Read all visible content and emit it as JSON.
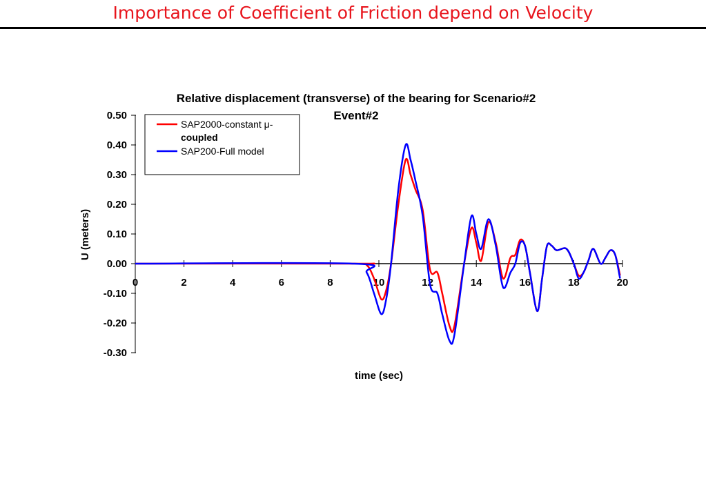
{
  "slide_title": "Importance of Coefficient of Friction depend on Velocity",
  "chart_data": {
    "type": "line",
    "title_line1": "Relative displacement (transverse) of the bearing for Scenario#2",
    "title_line2": "Event#2",
    "xlabel": "time (sec)",
    "ylabel": "U (meters)",
    "xlim": [
      0,
      20
    ],
    "ylim": [
      -0.3,
      0.5
    ],
    "x_ticks": [
      "0",
      "2",
      "4",
      "6",
      "8",
      "10",
      "12",
      "14",
      "16",
      "18",
      "20"
    ],
    "y_ticks": [
      "0.50",
      "0.40",
      "0.30",
      "0.20",
      "0.10",
      "0.00",
      "-0.10",
      "-0.20",
      "-0.30"
    ],
    "grid": false,
    "legend": {
      "position": "top-left",
      "entries": [
        {
          "label_line1": "SAP2000-constant μ-",
          "label_line2": "coupled"
        },
        {
          "label_line1": "SAP200-Full model"
        }
      ]
    },
    "series": [
      {
        "name": "SAP2000-constant μ-coupled",
        "color": "#ff0000",
        "x": [
          0,
          9.0,
          9.5,
          9.8,
          10.1,
          10.3,
          10.5,
          10.8,
          11.1,
          11.3,
          11.5,
          11.8,
          12.1,
          12.4,
          12.6,
          12.9,
          13.1,
          13.5,
          13.8,
          14.0,
          14.2,
          14.5,
          14.8,
          15.1,
          15.4,
          15.6,
          15.8,
          16.0,
          16.2,
          16.5,
          16.7,
          16.9,
          17.1,
          17.3,
          17.7,
          18.0,
          18.2,
          18.4,
          18.6,
          18.8,
          19.1,
          19.3,
          19.5,
          19.7,
          19.9
        ],
        "y": [
          0,
          0,
          -0.005,
          -0.05,
          -0.12,
          -0.09,
          0.0,
          0.2,
          0.35,
          0.3,
          0.25,
          0.18,
          -0.02,
          -0.03,
          -0.1,
          -0.21,
          -0.21,
          0.0,
          0.12,
          0.07,
          0.01,
          0.14,
          0.07,
          -0.05,
          0.02,
          0.03,
          0.08,
          0.06,
          -0.03,
          -0.16,
          -0.05,
          0.06,
          0.06,
          0.045,
          0.05,
          0.0,
          -0.04,
          -0.03,
          0.01,
          0.05,
          0.0,
          0.02,
          0.045,
          0.03,
          -0.04
        ]
      },
      {
        "name": "SAP200-Full model",
        "color": "#0000ff",
        "x": [
          0,
          9.0,
          9.5,
          9.8,
          10.1,
          10.3,
          10.5,
          10.8,
          11.1,
          11.3,
          11.5,
          11.8,
          12.1,
          12.4,
          12.6,
          12.9,
          13.1,
          13.5,
          13.8,
          14.0,
          14.2,
          14.5,
          14.8,
          15.1,
          15.4,
          15.6,
          15.8,
          16.0,
          16.2,
          16.5,
          16.7,
          16.9,
          17.1,
          17.3,
          17.7,
          18.0,
          18.2,
          18.4,
          18.6,
          18.8,
          19.1,
          19.3,
          19.5,
          19.7,
          19.9
        ],
        "y": [
          0,
          0,
          -0.03,
          -0.1,
          -0.17,
          -0.12,
          0.0,
          0.25,
          0.4,
          0.35,
          0.28,
          0.16,
          -0.07,
          -0.1,
          -0.17,
          -0.26,
          -0.24,
          0.0,
          0.16,
          0.1,
          0.05,
          0.15,
          0.06,
          -0.08,
          -0.03,
          0.0,
          0.07,
          0.06,
          -0.03,
          -0.16,
          -0.05,
          0.06,
          0.06,
          0.045,
          0.05,
          0.0,
          -0.05,
          -0.03,
          0.01,
          0.05,
          0.0,
          0.02,
          0.045,
          0.03,
          -0.05
        ]
      }
    ]
  }
}
